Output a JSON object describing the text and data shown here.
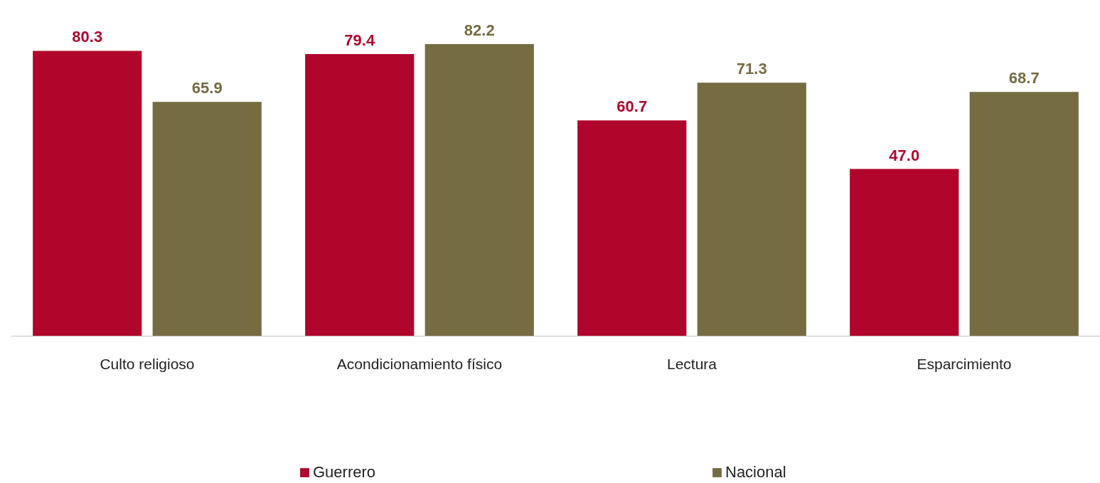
{
  "chart_data": {
    "type": "bar",
    "categories": [
      "Culto religioso",
      "Acondicionamiento físico",
      "Lectura",
      "Esparcimiento"
    ],
    "series": [
      {
        "name": "Guerrero",
        "color": "#b0062c",
        "values": [
          80.3,
          79.4,
          60.7,
          47.0
        ],
        "value_labels": [
          "80.3",
          "79.4",
          "60.7",
          "47.0"
        ]
      },
      {
        "name": "Nacional",
        "color": "#756c42",
        "values": [
          65.9,
          82.2,
          71.3,
          68.7
        ],
        "value_labels": [
          "65.9",
          "82.2",
          "71.3",
          "68.7"
        ]
      }
    ],
    "legend": "bottom"
  }
}
